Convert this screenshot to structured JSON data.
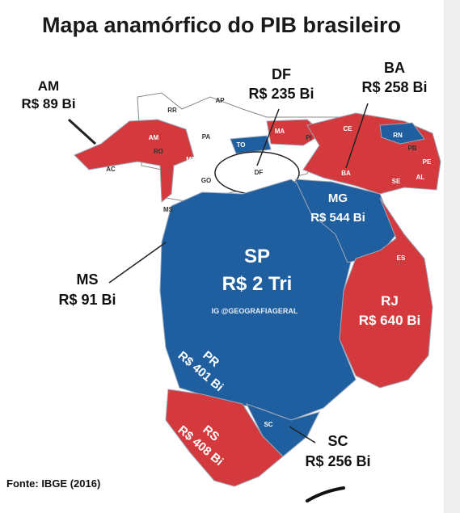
{
  "title": "Mapa anamórfico do PIB brasileiro",
  "source": "Fonte: IBGE (2016)",
  "watermark": "IG @GEOGRAFIAGERAL",
  "callouts": [
    {
      "state": "AM",
      "value": "R$ 89 Bi"
    },
    {
      "state": "DF",
      "value": "R$ 235 Bi"
    },
    {
      "state": "BA",
      "value": "R$ 258 Bi"
    },
    {
      "state": "MS",
      "value": "R$ 91 Bi"
    },
    {
      "state": "SC",
      "value": "R$ 256 Bi"
    },
    {
      "state": "MG",
      "value": "R$ 544 Bi"
    },
    {
      "state": "SP",
      "value": "R$ 2 Tri"
    },
    {
      "state": "RJ",
      "value": "R$ 640 Bi"
    },
    {
      "state": "PR",
      "value": "R$ 401 Bi"
    },
    {
      "state": "RS",
      "value": "R$ 408 Bi"
    }
  ],
  "map_labels": [
    "RR",
    "AP",
    "AM",
    "PA",
    "MA",
    "PI",
    "CE",
    "RN",
    "PB",
    "PE",
    "AL",
    "SE",
    "RO",
    "AC",
    "MT",
    "TO",
    "GO",
    "DF",
    "BA",
    "ES",
    "MS",
    "SC"
  ]
}
